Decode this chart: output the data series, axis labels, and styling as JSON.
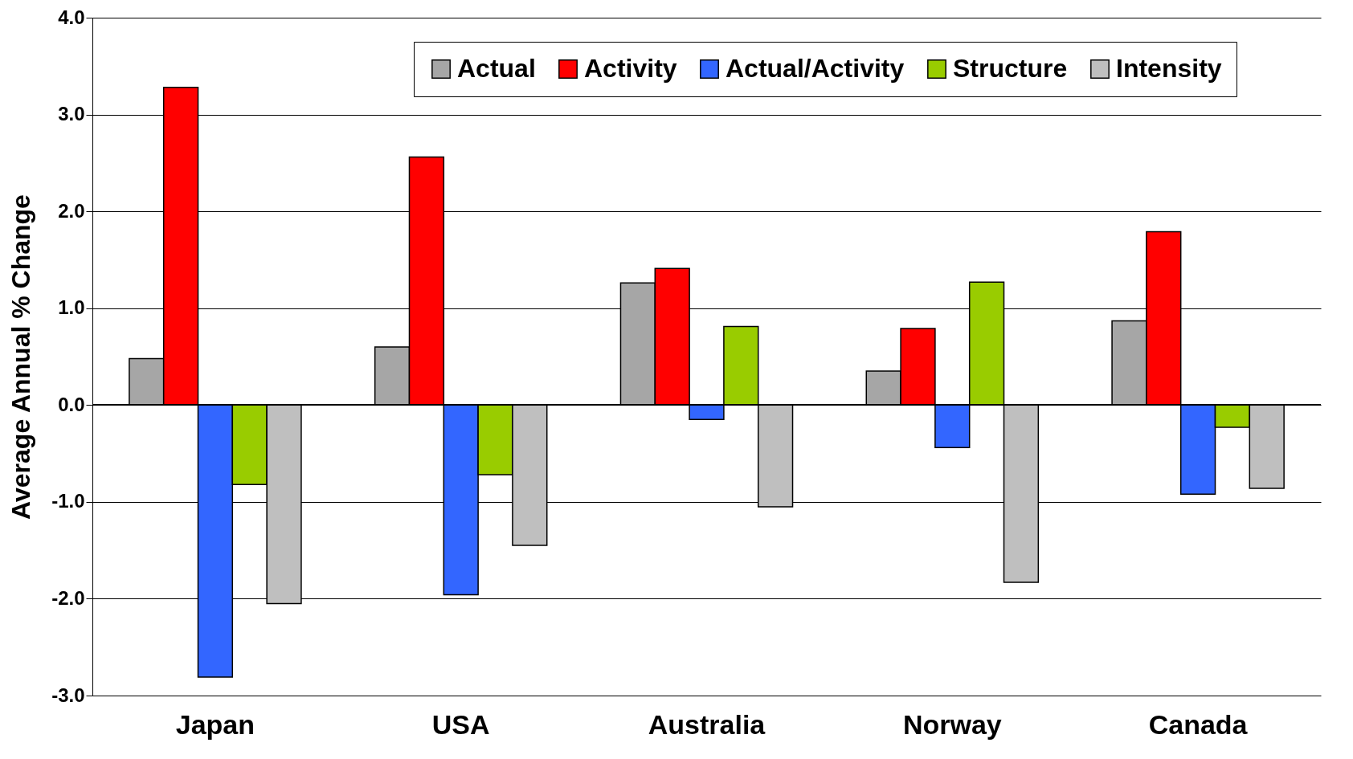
{
  "chart_data": {
    "type": "bar",
    "ylabel": "Average Annual % Change",
    "categories": [
      "Japan",
      "USA",
      "Australia",
      "Norway",
      "Canada"
    ],
    "series": [
      {
        "name": "Actual",
        "color": "#a6a6a6",
        "values": [
          0.48,
          0.6,
          1.26,
          0.35,
          0.87
        ]
      },
      {
        "name": "Activity",
        "color": "#ff0000",
        "values": [
          3.28,
          2.56,
          1.41,
          0.79,
          1.79
        ]
      },
      {
        "name": "Actual/Activity",
        "color": "#3366ff",
        "values": [
          -2.81,
          -1.96,
          -0.15,
          -0.44,
          -0.92
        ]
      },
      {
        "name": "Structure",
        "color": "#99cc00",
        "values": [
          -0.82,
          -0.72,
          0.81,
          1.27,
          -0.23
        ]
      },
      {
        "name": "Intensity",
        "color": "#bfbfbf",
        "values": [
          -2.05,
          -1.45,
          -1.05,
          -1.83,
          -0.86
        ]
      }
    ],
    "ylim": [
      -3,
      4
    ],
    "yticks": [
      {
        "value": -3,
        "label": "-3.0"
      },
      {
        "value": -2,
        "label": "-2.0"
      },
      {
        "value": -1,
        "label": "-1.0"
      },
      {
        "value": 0,
        "label": "0.0"
      },
      {
        "value": 1,
        "label": "1.0"
      },
      {
        "value": 2,
        "label": "2.0"
      },
      {
        "value": 3,
        "label": "3.0"
      },
      {
        "value": 4,
        "label": "4.0"
      }
    ],
    "grid": "y",
    "legend": "top"
  }
}
